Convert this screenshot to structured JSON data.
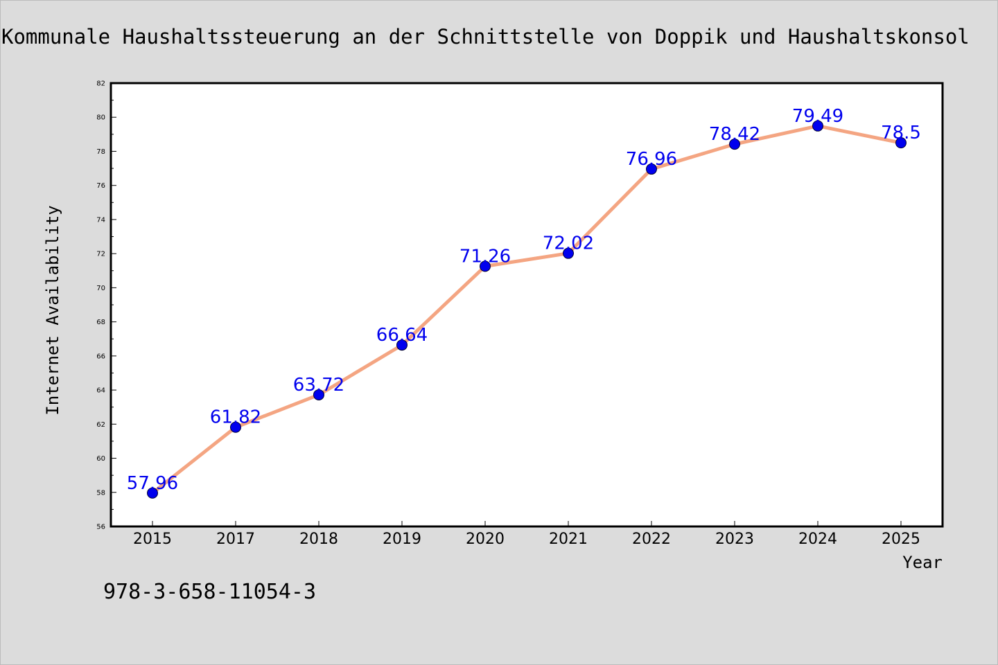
{
  "chart_data": {
    "type": "line",
    "title": "Kommunale Haushaltssteuerung an der Schnittstelle von Doppik und Haushaltskonsol",
    "xlabel": "Year",
    "ylabel": "Internet Availability",
    "categories": [
      "2015",
      "2017",
      "2018",
      "2019",
      "2020",
      "2021",
      "2022",
      "2023",
      "2024",
      "2025"
    ],
    "values": [
      57.96,
      61.82,
      63.72,
      66.64,
      71.26,
      72.02,
      76.96,
      78.42,
      79.49,
      78.5
    ],
    "data_labels": [
      "57.96",
      "61.82",
      "63.72",
      "66.64",
      "71.26",
      "72.02",
      "76.96",
      "78.42",
      "79.49",
      "78.5"
    ],
    "ylim": [
      56,
      82
    ],
    "y_ticks": [
      56,
      58,
      60,
      62,
      64,
      66,
      68,
      70,
      72,
      74,
      76,
      78,
      80,
      82
    ],
    "grid": false,
    "legend": "none",
    "colors": {
      "line": "#f4a582",
      "marker": "#0000ee",
      "data_label": "#0000ee",
      "background": "#dcdcdc",
      "plot_background": "#ffffff"
    }
  },
  "annotation": {
    "isbn": "978-3-658-11054-3"
  }
}
